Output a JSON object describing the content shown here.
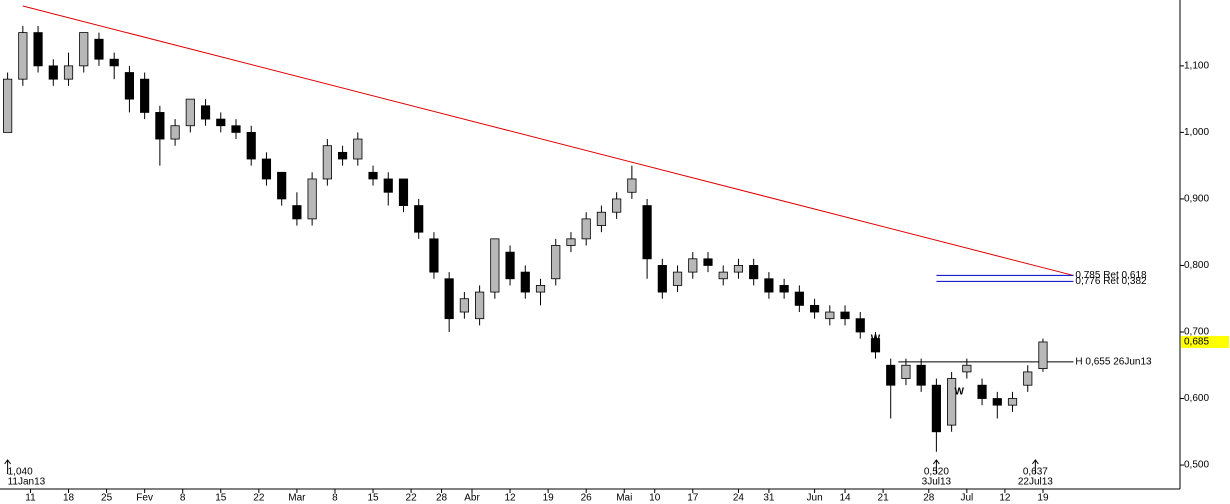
{
  "chart_data": {
    "type": "candlestick",
    "x": [
      0,
      2,
      4,
      6,
      8,
      10,
      12,
      14,
      16,
      18,
      20,
      22,
      24,
      26,
      28,
      30,
      32,
      34,
      36,
      38,
      40,
      42,
      44,
      46,
      48,
      50,
      52,
      54,
      56,
      58,
      60,
      62,
      64,
      66,
      68,
      70,
      72,
      74,
      76,
      78,
      80,
      82,
      84,
      86,
      88,
      90,
      92,
      94,
      96,
      98,
      100,
      102,
      104,
      106,
      108,
      110,
      112,
      114,
      116,
      118,
      120,
      122,
      124,
      126,
      128,
      130,
      132,
      134,
      136
    ],
    "open": [
      1.0,
      1.08,
      1.15,
      1.1,
      1.08,
      1.1,
      1.14,
      1.11,
      1.09,
      1.08,
      1.03,
      0.99,
      1.01,
      1.04,
      1.02,
      1.01,
      1.0,
      0.96,
      0.94,
      0.89,
      0.87,
      0.93,
      0.97,
      0.96,
      0.94,
      0.93,
      0.93,
      0.89,
      0.84,
      0.78,
      0.73,
      0.72,
      0.76,
      0.82,
      0.79,
      0.76,
      0.78,
      0.83,
      0.84,
      0.86,
      0.88,
      0.91,
      0.89,
      0.8,
      0.77,
      0.79,
      0.81,
      0.78,
      0.79,
      0.8,
      0.78,
      0.77,
      0.76,
      0.74,
      0.72,
      0.73,
      0.72,
      0.69,
      0.65,
      0.63,
      0.65,
      0.62,
      0.56,
      0.64,
      0.62,
      0.6,
      0.59,
      0.62,
      0.645
    ],
    "high": [
      1.09,
      1.16,
      1.16,
      1.11,
      1.12,
      1.15,
      1.15,
      1.12,
      1.1,
      1.09,
      1.04,
      1.02,
      1.05,
      1.05,
      1.03,
      1.02,
      1.01,
      0.97,
      0.94,
      0.91,
      0.94,
      0.99,
      0.98,
      1.0,
      0.95,
      0.94,
      0.93,
      0.9,
      0.85,
      0.79,
      0.76,
      0.77,
      0.84,
      0.83,
      0.8,
      0.78,
      0.84,
      0.85,
      0.88,
      0.89,
      0.91,
      0.95,
      0.9,
      0.81,
      0.8,
      0.82,
      0.82,
      0.8,
      0.81,
      0.81,
      0.79,
      0.78,
      0.77,
      0.75,
      0.74,
      0.74,
      0.73,
      0.7,
      0.66,
      0.66,
      0.66,
      0.63,
      0.64,
      0.66,
      0.63,
      0.61,
      0.61,
      0.65,
      0.69
    ],
    "low": [
      1.0,
      1.07,
      1.09,
      1.07,
      1.07,
      1.09,
      1.1,
      1.08,
      1.03,
      1.02,
      0.95,
      0.98,
      1.0,
      1.01,
      1.0,
      0.99,
      0.95,
      0.92,
      0.89,
      0.86,
      0.86,
      0.92,
      0.95,
      0.95,
      0.92,
      0.89,
      0.88,
      0.84,
      0.78,
      0.7,
      0.72,
      0.71,
      0.75,
      0.77,
      0.75,
      0.74,
      0.77,
      0.82,
      0.83,
      0.85,
      0.87,
      0.9,
      0.78,
      0.75,
      0.76,
      0.78,
      0.79,
      0.77,
      0.78,
      0.77,
      0.75,
      0.75,
      0.73,
      0.72,
      0.71,
      0.71,
      0.69,
      0.66,
      0.57,
      0.62,
      0.61,
      0.52,
      0.55,
      0.63,
      0.59,
      0.57,
      0.58,
      0.61,
      0.64
    ],
    "close": [
      1.08,
      1.15,
      1.1,
      1.08,
      1.1,
      1.15,
      1.11,
      1.1,
      1.05,
      1.03,
      0.99,
      1.01,
      1.05,
      1.02,
      1.01,
      1.0,
      0.96,
      0.93,
      0.9,
      0.87,
      0.93,
      0.98,
      0.96,
      0.99,
      0.93,
      0.91,
      0.89,
      0.85,
      0.79,
      0.72,
      0.75,
      0.76,
      0.84,
      0.78,
      0.76,
      0.77,
      0.83,
      0.84,
      0.87,
      0.88,
      0.9,
      0.93,
      0.81,
      0.76,
      0.79,
      0.81,
      0.8,
      0.79,
      0.8,
      0.78,
      0.76,
      0.76,
      0.74,
      0.73,
      0.73,
      0.72,
      0.7,
      0.67,
      0.62,
      0.65,
      0.62,
      0.55,
      0.63,
      0.65,
      0.6,
      0.59,
      0.6,
      0.64,
      0.685
    ],
    "up_color": "#b8b8b8",
    "down_color": "#000000",
    "xlim": [
      -1,
      154
    ],
    "ylim": [
      0.464,
      1.199
    ],
    "xticks": [
      {
        "value": 3,
        "label": "11"
      },
      {
        "value": 8,
        "label": "18"
      },
      {
        "value": 13,
        "label": "25"
      },
      {
        "value": 18,
        "label": "Fev"
      },
      {
        "value": 23,
        "label": "8"
      },
      {
        "value": 28,
        "label": "15"
      },
      {
        "value": 33,
        "label": "22"
      },
      {
        "value": 38,
        "label": "Mar"
      },
      {
        "value": 43,
        "label": "8"
      },
      {
        "value": 48,
        "label": "15"
      },
      {
        "value": 53,
        "label": "22"
      },
      {
        "value": 57,
        "label": "28"
      },
      {
        "value": 61,
        "label": "Abr"
      },
      {
        "value": 66,
        "label": "12"
      },
      {
        "value": 71,
        "label": "19"
      },
      {
        "value": 76,
        "label": "26"
      },
      {
        "value": 81,
        "label": "Mai"
      },
      {
        "value": 85,
        "label": "10"
      },
      {
        "value": 90,
        "label": "17"
      },
      {
        "value": 96,
        "label": "24"
      },
      {
        "value": 100,
        "label": "31"
      },
      {
        "value": 106,
        "label": "Jun"
      },
      {
        "value": 110,
        "label": "14"
      },
      {
        "value": 115,
        "label": "21"
      },
      {
        "value": 121,
        "label": "28"
      },
      {
        "value": 126,
        "label": "Jul"
      },
      {
        "value": 131,
        "label": "12"
      },
      {
        "value": 136,
        "label": "19"
      }
    ],
    "yticks": [
      {
        "value": 1.1,
        "label": "1,100"
      },
      {
        "value": 1.0,
        "label": "1,000"
      },
      {
        "value": 0.9,
        "label": "0,900"
      },
      {
        "value": 0.8,
        "label": "0,800"
      },
      {
        "value": 0.7,
        "label": "0,700"
      },
      {
        "value": 0.6,
        "label": "0,600"
      },
      {
        "value": 0.5,
        "label": "0,500"
      }
    ],
    "trendline": {
      "x": [
        2,
        140
      ],
      "y": [
        1.19,
        0.785
      ],
      "color": "#e00000"
    },
    "levels": [
      {
        "value": 0.785,
        "label": "0,785 Ret 0,618",
        "x": [
          122,
          140
        ],
        "color": "#0000cc",
        "label_color": "#cc2266"
      },
      {
        "value": 0.776,
        "label": "0,776 Ret 0,382",
        "x": [
          122,
          140
        ],
        "color": "#0000cc",
        "label_color": "#0000cc"
      },
      {
        "value": 0.655,
        "label": "H 0,655 26Jun13",
        "x": [
          117,
          140
        ],
        "color": "#000000",
        "label_color": "#000000"
      }
    ],
    "last_price": {
      "value": 0.685,
      "label": "0,685",
      "color": "#ffff00"
    },
    "callouts": [
      {
        "x": 0,
        "value": 1.04,
        "label": "1,040",
        "date": "11Jan13"
      },
      {
        "x": 122,
        "value": 0.52,
        "label": "0,520",
        "date": "3Jul13"
      },
      {
        "x": 135,
        "value": 0.637,
        "label": "0,637",
        "date": "22Jul13"
      }
    ],
    "markers": [
      {
        "x": 4,
        "value": 1.14,
        "label": "T",
        "color": "#cc44cc"
      },
      {
        "x": 114,
        "value": 0.69,
        "label": "W",
        "color": "#e00000"
      },
      {
        "x": 125,
        "value": 0.61,
        "label": "W",
        "color": "#1a8a1a"
      }
    ]
  }
}
